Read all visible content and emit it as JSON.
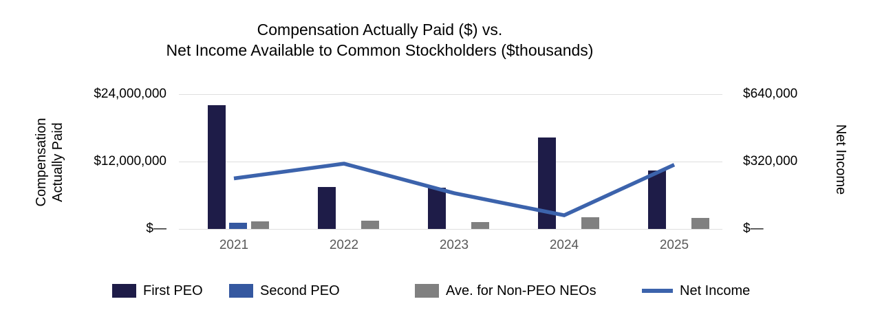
{
  "title": {
    "line1": "Compensation Actually Paid ($) vs.",
    "line2": "Net Income Available to Common Stockholders ($thousands)"
  },
  "chart_data": {
    "type": "combo-bar-line",
    "categories": [
      "2021",
      "2022",
      "2023",
      "2024",
      "2025"
    ],
    "series": [
      {
        "name": "First PEO",
        "type": "bar",
        "axis": "left",
        "color": "#1E1C48",
        "values": [
          22000000,
          7500000,
          7300000,
          16300000,
          10400000
        ]
      },
      {
        "name": "Second PEO",
        "type": "bar",
        "axis": "left",
        "color": "#3558A0",
        "values": [
          1100000,
          0,
          0,
          0,
          0
        ]
      },
      {
        "name": "Ave. for Non-PEO NEOs",
        "type": "bar",
        "axis": "left",
        "color": "#808080",
        "values": [
          1300000,
          1500000,
          1200000,
          2100000,
          2000000
        ]
      },
      {
        "name": "Net Income",
        "type": "line",
        "axis": "right",
        "color": "#3C63AC",
        "values": [
          240000,
          310000,
          170000,
          65000,
          305000
        ]
      }
    ],
    "left_axis": {
      "title_line1": "Compensation",
      "title_line2": "Actually Paid",
      "max": 24000000,
      "ticks": [
        {
          "label": "$—",
          "value": 0
        },
        {
          "label": "$12,000,000",
          "value": 12000000
        },
        {
          "label": "$24,000,000",
          "value": 24000000
        }
      ]
    },
    "right_axis": {
      "title": "Net Income",
      "max": 640000,
      "ticks": [
        {
          "label": "$—",
          "value": 0
        },
        {
          "label": "$320,000",
          "value": 320000
        },
        {
          "label": "$640,000",
          "value": 640000
        }
      ]
    },
    "gridlines": true,
    "legend_position": "bottom"
  },
  "colors": {
    "grid": "#DEDEDE",
    "year_text": "#595959",
    "tick_text": "#000000",
    "title_text": "#000000",
    "background": "#FFFFFF"
  }
}
